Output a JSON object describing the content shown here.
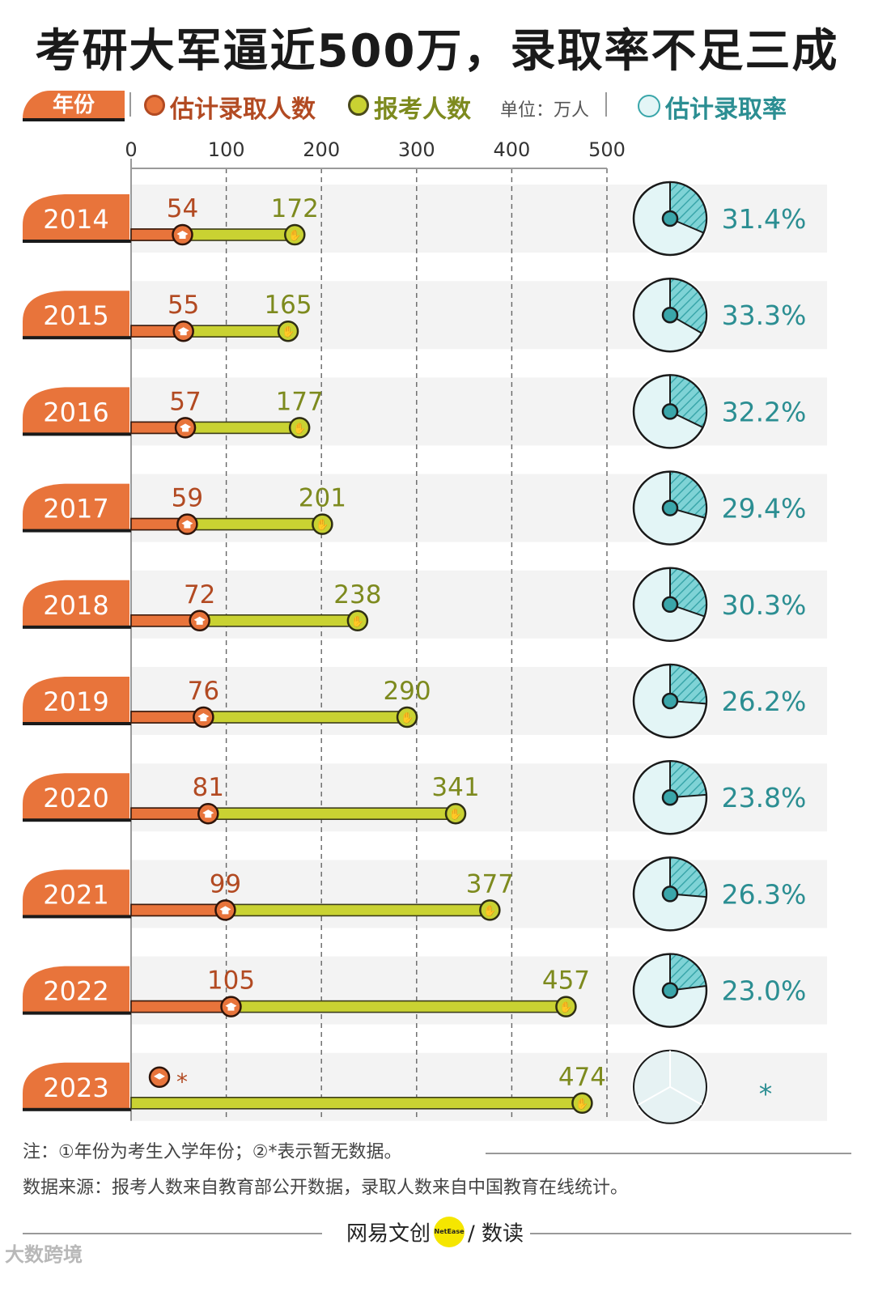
{
  "title": "考研大军逼近500万，录取率不足三成",
  "legend": {
    "year_label": "年份",
    "admitted_label": "估计录取人数",
    "applicants_label": "报考人数",
    "unit_label": "单位：万人",
    "rate_label": "估计录取率"
  },
  "colors": {
    "admitted": "#e8743b",
    "applicants": "#c9d232",
    "applicants_text": "#7d8a1e",
    "admitted_text": "#b24a22",
    "rate": "#3aa6aa",
    "rate_text": "#2b8e92",
    "pie_bg": "#e3f5f6",
    "row_bg": "#f3f3f3"
  },
  "chart_data": {
    "type": "bar",
    "categories": [
      "2014",
      "2015",
      "2016",
      "2017",
      "2018",
      "2019",
      "2020",
      "2021",
      "2022",
      "2023"
    ],
    "x_ticks": [
      "0",
      "100",
      "200",
      "300",
      "400",
      "500"
    ],
    "xlim": [
      0,
      500
    ],
    "grid": true,
    "series": [
      {
        "name": "估计录取人数",
        "values": [
          54,
          55,
          57,
          59,
          72,
          76,
          81,
          99,
          105,
          null
        ],
        "labels": [
          "54",
          "55",
          "57",
          "59",
          "72",
          "76",
          "81",
          "99",
          "105",
          "*"
        ]
      },
      {
        "name": "报考人数",
        "values": [
          172,
          165,
          177,
          201,
          238,
          290,
          341,
          377,
          457,
          474
        ],
        "labels": [
          "172",
          "165",
          "177",
          "201",
          "238",
          "290",
          "341",
          "377",
          "457",
          "474"
        ]
      },
      {
        "name": "估计录取率",
        "values": [
          31.4,
          33.3,
          32.2,
          29.4,
          30.3,
          26.2,
          23.8,
          26.3,
          23.0,
          null
        ],
        "labels": [
          "31.4%",
          "33.3%",
          "32.2%",
          "29.4%",
          "30.3%",
          "26.2%",
          "23.8%",
          "26.3%",
          "23.0%",
          "*"
        ]
      }
    ]
  },
  "notes": {
    "note1": "注：①年份为考生入学年份；②*表示暂无数据。",
    "source": "数据来源：报考人数来自教育部公开数据，录取人数来自中国教育在线统计。"
  },
  "footer": {
    "brand_a": "网易文创",
    "brand_dot": "NetEase",
    "brand_b": "/ 数读"
  },
  "watermark": "大数跨境"
}
